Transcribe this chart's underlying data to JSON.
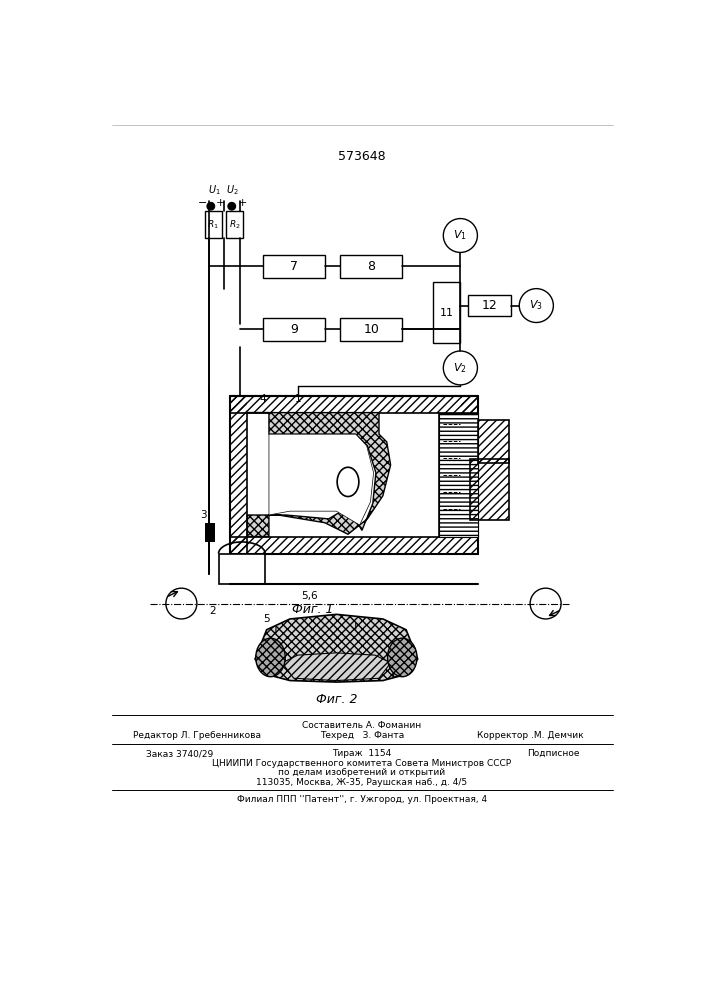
{
  "patent_number": "573648",
  "fig1_caption": "Фиг. 1",
  "fig2_caption": "Фиг. 2",
  "footer_line1_left": "Редактор Л. Гребенникова",
  "footer_line1_center1": "Составитель А. Фоманин",
  "footer_line1_center2": "Техред   З. Фанта",
  "footer_line1_right": "Корректор .М. Демчик",
  "footer_line2_left": "Заказ 3740/29",
  "footer_line2_center": "Тираж  1154",
  "footer_line2_right": "Подписное",
  "footer_line3": "ЦНИИПИ Государственного комитета Совета Министров СССР",
  "footer_line4": "по делам изобретений и открытий",
  "footer_line5": "113035, Москва, Ж-35, Раушская наб., д. 4/5",
  "footer_line6": "Филиал ППП ''Патент'', г. Ужгород, ул. Проектная, 4",
  "bg_color": "#ffffff"
}
